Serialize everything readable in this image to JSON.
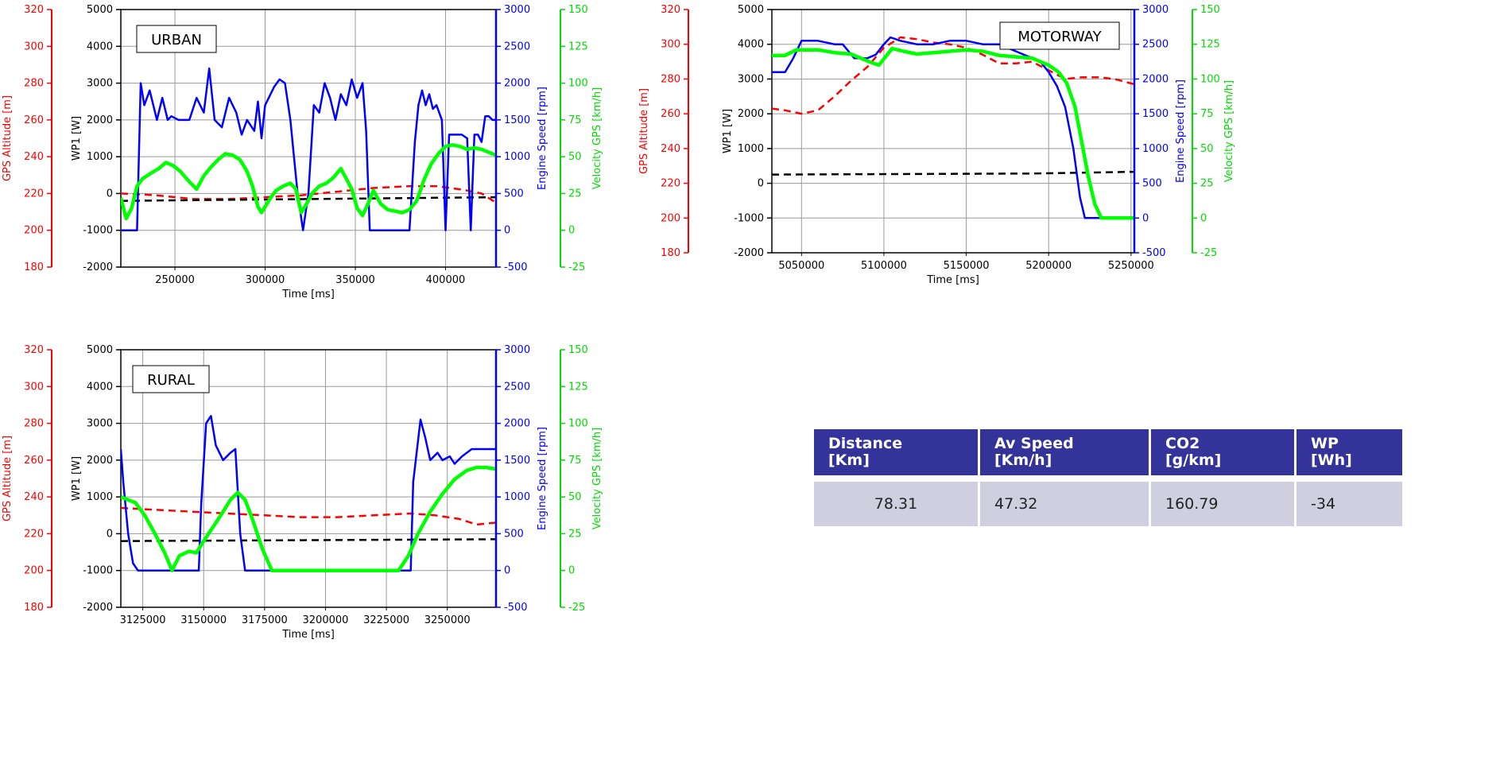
{
  "colors": {
    "altitude": "#ff0000",
    "wp1": "#000000",
    "engine": "#0000ff",
    "velocity": "#00ff00"
  },
  "axes": {
    "altitude": {
      "label": "GPS Altitude [m]",
      "ticks": [
        180,
        200,
        220,
        240,
        260,
        280,
        300,
        320
      ],
      "range": [
        180,
        320
      ]
    },
    "wp1": {
      "label": "WP1 [W]",
      "ticks": [
        -2000,
        -1000,
        0,
        1000,
        2000,
        3000,
        4000,
        5000
      ],
      "range": [
        -2000,
        5000
      ]
    },
    "engine": {
      "label": "Engine Speed [rpm]",
      "ticks": [
        -500,
        0,
        500,
        1000,
        1500,
        2000,
        2500,
        3000
      ],
      "range": [
        -500,
        3000
      ]
    },
    "velocity": {
      "label": "Velocity GPS [km/h]",
      "ticks": [
        -25,
        0,
        25,
        50,
        75,
        100,
        125,
        150
      ],
      "range": [
        -25,
        150
      ]
    },
    "time": {
      "label": "Time [ms]"
    }
  },
  "chart_data": [
    {
      "type": "line",
      "title": "URBAN",
      "xlim": [
        220000,
        428000
      ],
      "xticks": [
        250000,
        300000,
        350000,
        400000
      ],
      "series": [
        {
          "name": "GPS Altitude [m]",
          "axis": "altitude",
          "style": "dashed",
          "x": [
            220000,
            240000,
            260000,
            280000,
            300000,
            320000,
            340000,
            360000,
            380000,
            395000,
            410000,
            420000,
            428000
          ],
          "y": [
            220,
            219,
            217,
            217,
            218,
            219,
            221,
            223,
            224,
            224,
            222,
            220,
            215
          ]
        },
        {
          "name": "WP1 [W]",
          "axis": "wp1",
          "style": "dashed",
          "x": [
            220000,
            428000
          ],
          "y": [
            -200,
            -100
          ]
        },
        {
          "name": "Engine Speed [rpm]",
          "axis": "engine",
          "style": "solid",
          "x": [
            220000,
            229000,
            231000,
            233000,
            236000,
            240000,
            243000,
            246000,
            248000,
            252000,
            255000,
            258000,
            262000,
            266000,
            269000,
            272000,
            276000,
            280000,
            284000,
            287000,
            290000,
            294000,
            296000,
            298000,
            300000,
            302000,
            305000,
            308000,
            311000,
            314000,
            316000,
            318000,
            321000,
            324000,
            327000,
            330000,
            333000,
            336000,
            339000,
            342000,
            345000,
            348000,
            351000,
            354000,
            356000,
            358000,
            362000,
            366000,
            370000,
            376000,
            380000,
            383000,
            385000,
            387000,
            389000,
            391000,
            393000,
            395000,
            398000,
            400000,
            402000,
            404000,
            406000,
            409000,
            412000,
            414000,
            416000,
            418000,
            420000,
            422000,
            424000,
            426000,
            428000
          ],
          "y": [
            0,
            0,
            2000,
            1700,
            1900,
            1500,
            1800,
            1500,
            1550,
            1500,
            1500,
            1500,
            1800,
            1600,
            2200,
            1500,
            1400,
            1800,
            1600,
            1300,
            1500,
            1350,
            1750,
            1250,
            1700,
            1800,
            1950,
            2050,
            2000,
            1500,
            1000,
            500,
            0,
            500,
            1700,
            1600,
            2000,
            1800,
            1500,
            1850,
            1700,
            2050,
            1800,
            2000,
            1350,
            0,
            0,
            0,
            0,
            0,
            0,
            1200,
            1700,
            1900,
            1700,
            1850,
            1650,
            1700,
            1500,
            0,
            1300,
            1300,
            1300,
            1300,
            1250,
            0,
            1300,
            1300,
            1200,
            1550,
            1550,
            1500,
            1500
          ]
        },
        {
          "name": "Velocity GPS [km/h]",
          "axis": "velocity",
          "style": "solid",
          "x": [
            220000,
            223000,
            226000,
            229000,
            232000,
            237000,
            241000,
            245000,
            249000,
            253000,
            258000,
            262000,
            266000,
            270000,
            274000,
            278000,
            282000,
            286000,
            290000,
            293000,
            296000,
            298000,
            300000,
            303000,
            306000,
            310000,
            314000,
            317000,
            320000,
            323000,
            326000,
            330000,
            334000,
            338000,
            342000,
            345000,
            348000,
            351000,
            354000,
            357000,
            360000,
            364000,
            368000,
            372000,
            376000,
            380000,
            384000,
            388000,
            392000,
            396000,
            400000,
            404000,
            408000,
            412000,
            416000,
            420000,
            424000,
            428000
          ],
          "y": [
            22,
            8,
            15,
            30,
            35,
            39,
            42,
            46,
            44,
            40,
            33,
            28,
            37,
            43,
            48,
            52,
            51,
            48,
            40,
            30,
            16,
            12,
            16,
            22,
            27,
            30,
            32,
            28,
            12,
            18,
            25,
            30,
            32,
            36,
            42,
            35,
            28,
            15,
            10,
            18,
            27,
            18,
            14,
            13,
            12,
            14,
            20,
            34,
            45,
            52,
            57,
            58,
            57,
            55,
            56,
            55,
            53,
            51
          ]
        }
      ]
    },
    {
      "type": "line",
      "title": "MOTORWAY",
      "xlim": [
        5032000,
        5252000
      ],
      "xticks": [
        5050000,
        5100000,
        5150000,
        5200000,
        5250000
      ],
      "series": [
        {
          "name": "GPS Altitude [m]",
          "axis": "altitude",
          "style": "dashed",
          "x": [
            5032000,
            5040000,
            5050000,
            5060000,
            5070000,
            5080000,
            5090000,
            5100000,
            5110000,
            5120000,
            5130000,
            5140000,
            5150000,
            5160000,
            5170000,
            5180000,
            5190000,
            5200000,
            5210000,
            5220000,
            5230000,
            5240000,
            5252000
          ],
          "y": [
            263,
            262,
            260,
            262,
            270,
            279,
            287,
            298,
            304,
            303,
            301,
            300,
            298,
            294,
            289,
            289,
            290,
            285,
            280,
            281,
            281,
            280,
            277
          ]
        },
        {
          "name": "WP1 [W]",
          "axis": "wp1",
          "style": "dashed",
          "x": [
            5032000,
            5190000,
            5252000
          ],
          "y": [
            250,
            280,
            330
          ]
        },
        {
          "name": "Engine Speed [rpm]",
          "axis": "engine",
          "style": "solid",
          "x": [
            5032000,
            5040000,
            5045000,
            5050000,
            5060000,
            5070000,
            5075000,
            5082000,
            5090000,
            5095000,
            5100000,
            5104000,
            5110000,
            5120000,
            5130000,
            5140000,
            5150000,
            5160000,
            5170000,
            5180000,
            5190000,
            5195000,
            5200000,
            5205000,
            5210000,
            5215000,
            5219000,
            5222000,
            5226000,
            5252000
          ],
          "y": [
            2100,
            2100,
            2300,
            2550,
            2550,
            2500,
            2500,
            2300,
            2300,
            2350,
            2500,
            2600,
            2550,
            2500,
            2500,
            2550,
            2550,
            2500,
            2500,
            2400,
            2300,
            2250,
            2100,
            1900,
            1600,
            1000,
            300,
            0,
            0,
            0
          ]
        },
        {
          "name": "Velocity GPS [km/h]",
          "axis": "velocity",
          "style": "solid",
          "x": [
            5032000,
            5040000,
            5047000,
            5060000,
            5070000,
            5080000,
            5092000,
            5097000,
            5105000,
            5112000,
            5120000,
            5130000,
            5140000,
            5150000,
            5160000,
            5170000,
            5180000,
            5190000,
            5200000,
            5206000,
            5211000,
            5216000,
            5220000,
            5224000,
            5228000,
            5232000,
            5252000
          ],
          "y": [
            117,
            117,
            121,
            121,
            119,
            118,
            112,
            110,
            122,
            120,
            118,
            119,
            120,
            121,
            120,
            117,
            116,
            115,
            110,
            105,
            97,
            80,
            55,
            30,
            10,
            0,
            0
          ]
        }
      ]
    },
    {
      "type": "line",
      "title": "RURAL",
      "xlim": [
        3116000,
        3270000
      ],
      "xticks": [
        3125000,
        3150000,
        3175000,
        3200000,
        3225000,
        3250000
      ],
      "series": [
        {
          "name": "GPS Altitude [m]",
          "axis": "altitude",
          "style": "dashed",
          "x": [
            3116000,
            3130000,
            3145000,
            3160000,
            3175000,
            3190000,
            3205000,
            3220000,
            3235000,
            3245000,
            3255000,
            3262000,
            3270000
          ],
          "y": [
            234,
            233,
            232,
            231,
            230,
            229,
            229,
            230,
            231,
            230,
            228,
            225,
            226
          ]
        },
        {
          "name": "WP1 [W]",
          "axis": "wp1",
          "style": "dashed",
          "x": [
            3116000,
            3270000
          ],
          "y": [
            -200,
            -150
          ]
        },
        {
          "name": "Engine Speed [rpm]",
          "axis": "engine",
          "style": "solid",
          "x": [
            3116000,
            3117000,
            3119000,
            3121000,
            3123000,
            3148000,
            3149000,
            3151000,
            3153000,
            3155000,
            3158000,
            3161000,
            3163000,
            3165000,
            3167000,
            3169000,
            3235000,
            3236000,
            3239000,
            3241000,
            3243000,
            3246000,
            3248000,
            3251000,
            3253000,
            3256000,
            3260000,
            3264000,
            3266000,
            3270000
          ],
          "y": [
            1650,
            1200,
            500,
            100,
            0,
            0,
            900,
            2000,
            2100,
            1700,
            1500,
            1600,
            1650,
            500,
            0,
            0,
            0,
            1200,
            2050,
            1800,
            1500,
            1600,
            1500,
            1550,
            1450,
            1550,
            1650,
            1650,
            1650,
            1650
          ]
        },
        {
          "name": "Velocity GPS [km/h]",
          "axis": "velocity",
          "style": "solid",
          "x": [
            3116000,
            3119000,
            3122000,
            3126000,
            3130000,
            3134000,
            3137000,
            3140000,
            3144000,
            3147000,
            3150000,
            3154000,
            3158000,
            3161000,
            3164000,
            3167000,
            3170000,
            3174000,
            3178000,
            3210000,
            3230000,
            3234000,
            3238000,
            3243000,
            3248000,
            3253000,
            3258000,
            3262000,
            3266000,
            3270000
          ],
          "y": [
            50,
            48,
            46,
            37,
            25,
            12,
            0,
            10,
            13,
            12,
            20,
            30,
            40,
            48,
            53,
            48,
            35,
            15,
            0,
            0,
            0,
            10,
            25,
            40,
            52,
            62,
            68,
            70,
            70,
            69
          ]
        }
      ]
    }
  ],
  "table": {
    "headers": [
      "Distance\n[Km]",
      "Av Speed\n[Km/h]",
      "CO2\n[g/km]",
      "WP\n[Wh]"
    ],
    "row": [
      "78.31",
      "47.32",
      "160.79",
      "-34"
    ]
  }
}
